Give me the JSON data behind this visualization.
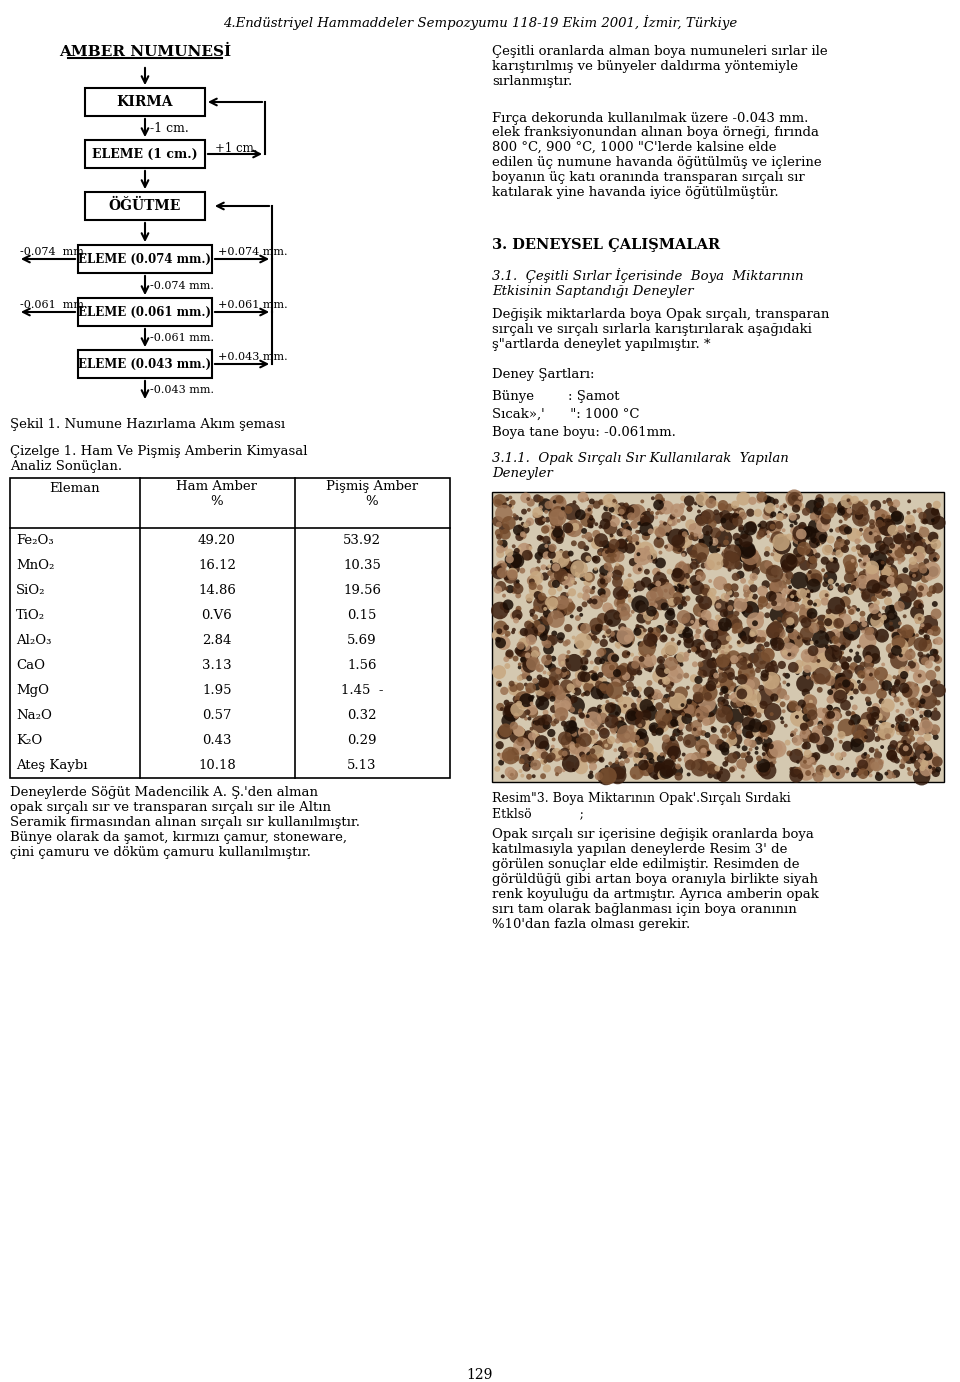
{
  "title": "4.Endüstriyel Hammaddeler Sempozyumu 118-19 Ekim 2001, İzmir, Türkiye",
  "page_number": "129",
  "flowchart_title": "AMBER NUMUNESİ",
  "flowchart_caption": "Şekil 1. Numune Hazırlama Akım şeması",
  "table_title1": "Çizelge 1. Ham Ve Pişmiş Amberin Kimyasal",
  "table_title2": "Analiz Sonüçlan.",
  "table_col1": "Eleman",
  "table_col2": "Ham Amber\n%",
  "table_col3": "Pişmiş Amber\n%",
  "table_rows": [
    [
      "Fe₂O₃",
      "49.20",
      "53.92"
    ],
    [
      "MnO₂",
      "16.12",
      "10.35"
    ],
    [
      "SiO₂",
      "14.86",
      "19.56"
    ],
    [
      "TiO₂",
      "0.V6",
      "0.15"
    ],
    [
      "Al₂O₃",
      "2.84",
      "5.69"
    ],
    [
      "CaO",
      "3.13",
      "1.56"
    ],
    [
      "MgO",
      "1.95",
      "1.45  -"
    ],
    [
      "Na₂O",
      "0.57",
      "0.32"
    ],
    [
      "K₂O",
      "0.43",
      "0.29"
    ],
    [
      "Ateş Kaybı",
      "10.18",
      "5.13"
    ]
  ],
  "footer_text": "Deneylerde Söğüt Madencilik A. Ş.'den alman\nopak sırçalı sır ve transparan sırçalı sır ile Altın\nSeramik firmasından alınan sırçalı sır kullanılmıştır.\nBünye olarak da şamot, kırmızı çamur, stoneware,\nçini çamuru ve döküm çamuru kullanılmıştır.",
  "r_para1": "Çeşitli oranlarda alman boya numuneleri sırlar ile\nkarıştırılmış ve bünyeler daldırma yöntemiyle\nsırlanmıştır.",
  "r_para2a": "Fırça dekorunda kullanılmak üzere -0.043 mm.",
  "r_para2b": "elek franksiyonundan alınan boya örneği, fırında\n800 °C, 900 °C, 1000 \"C'lerde kalsine elde\nedilen üç numune havanda öğütülmüş ve içlerine\nboyanın üç katı oranında transparan sırçalı sır\nkatılarak yine havanda iyice öğütülmüştür.",
  "s3_title": "3. DENEYSEL ÇALIŞMALAR",
  "s31_title": "3.1.  Çeşitli Sırlar İçerisinde  Boya  Miktarının\nEtkisinin Saptandığı Deneyler",
  "s31_para": "Değişik miktarlarda boya Opak sırçalı, transparan\nsırçalı ve sırçalı sırlarla karıştırılarak aşağıdaki\nş\"artlarda deneylet yapılmıştır. *",
  "deney_title": "Deney Şartları:",
  "deney_bunye": "Bünye        : Şamot",
  "deney_sicak": "Sıcak»,'      \": 1000 °C",
  "deney_boya": "Boya tane boyu: -0.061mm.",
  "s311_title": "3.1.1.  Opak Sırçalı Sır Kullanılarak  Yapılan\nDeneyler",
  "resim_caption": "Resim\"3. Boya Miktarının Opak'.Sırçalı Sırdaki\nEtklsö            ;",
  "r_para_last": "Opak sırçalı sır içerisine değişik oranlarda boya\nkatılmasıyla yapılan deneylerde Resim 3' de\ngörülen sonuçlar elde edilmiştir. Resimden de\ngörüldüğü gibi artan boya oranıyla birlikte siyah\nrenk koyuluğu da artmıştır. Ayrıca amberin opak\nsırı tam olarak bağlanması için boya oranının\n%10'dan fazla olması gerekir."
}
